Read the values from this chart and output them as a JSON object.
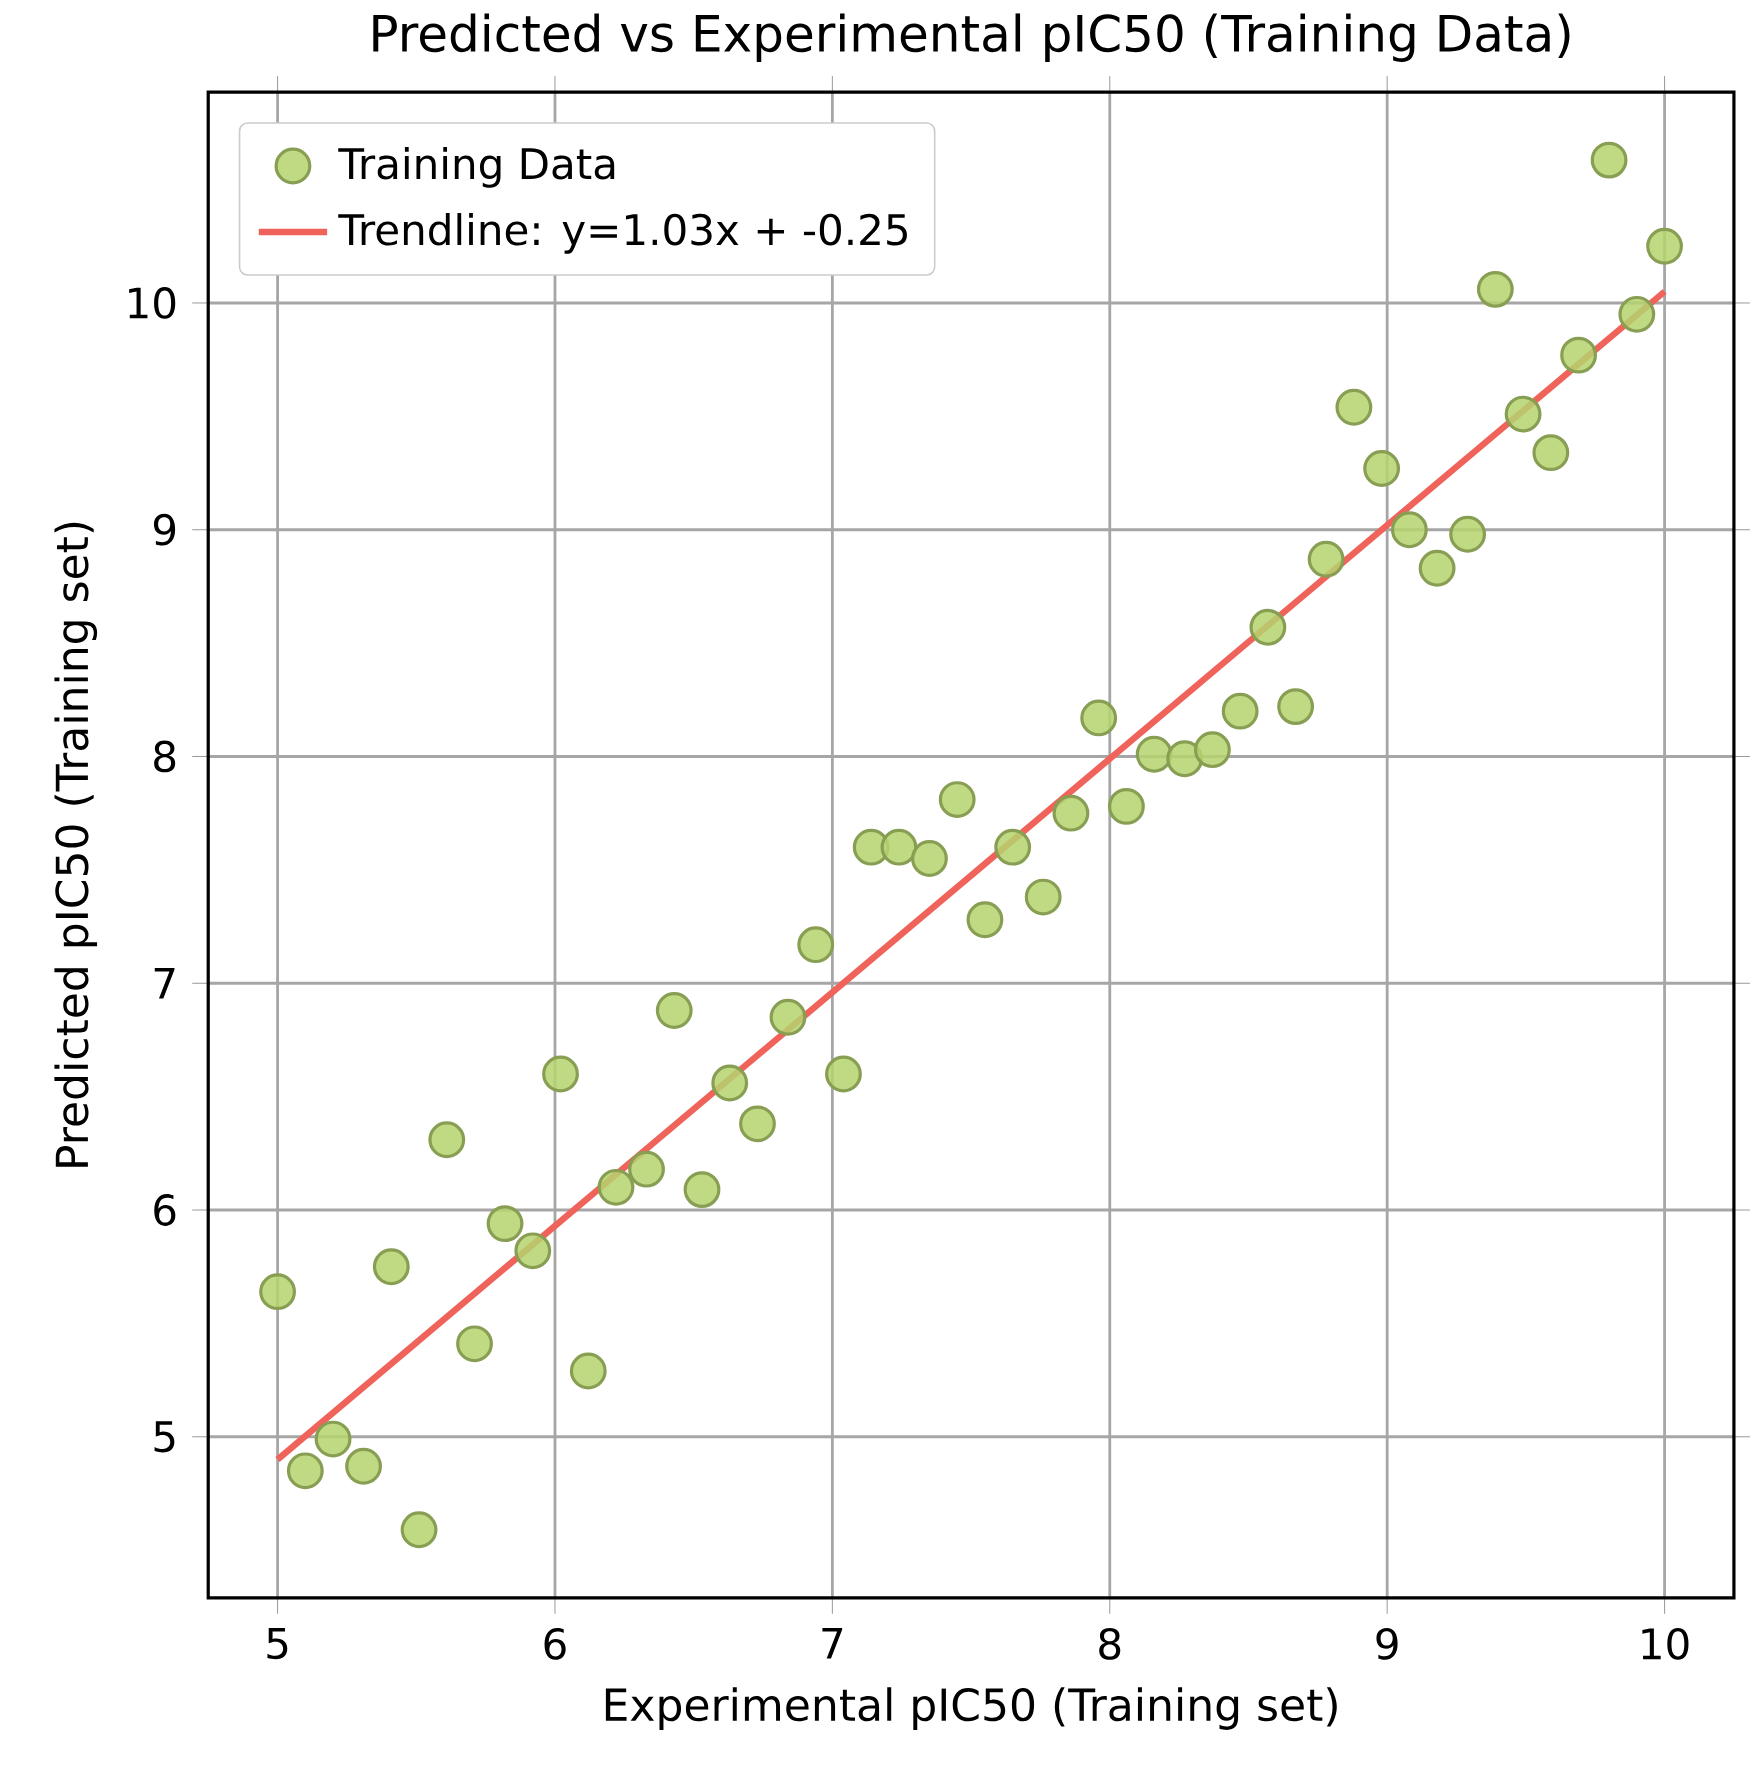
{
  "chart_data": {
    "type": "scatter",
    "title": "Predicted vs Experimental pIC50 (Training Data)",
    "xlabel": "Experimental pIC50 (Training set)",
    "ylabel": "Predicted pIC50 (Training set)",
    "xlim": [
      4.75,
      10.25
    ],
    "ylim": [
      4.29,
      10.93
    ],
    "xticks": [
      5,
      6,
      7,
      8,
      9,
      10
    ],
    "yticks": [
      5,
      6,
      7,
      8,
      9,
      10
    ],
    "grid": true,
    "legend": "top left",
    "marker": "circle",
    "series": [
      {
        "name": "Training Data",
        "color": "#b5d36f",
        "x": [
          5.0,
          5.1,
          5.2,
          5.31,
          5.41,
          5.51,
          5.61,
          5.71,
          5.82,
          5.92,
          6.02,
          6.12,
          6.22,
          6.33,
          6.43,
          6.53,
          6.63,
          6.73,
          6.84,
          6.94,
          7.04,
          7.14,
          7.24,
          7.35,
          7.45,
          7.55,
          7.65,
          7.76,
          7.86,
          7.96,
          8.06,
          8.16,
          8.27,
          8.37,
          8.47,
          8.57,
          8.67,
          8.78,
          8.88,
          8.98,
          9.08,
          9.18,
          9.29,
          9.39,
          9.49,
          9.59,
          9.69,
          9.8,
          9.9,
          10.0
        ],
        "values": [
          5.64,
          4.85,
          4.99,
          4.87,
          5.75,
          4.59,
          6.31,
          5.41,
          5.94,
          5.82,
          6.6,
          5.29,
          6.1,
          6.18,
          6.88,
          6.09,
          6.56,
          6.38,
          6.85,
          7.17,
          6.6,
          7.6,
          7.6,
          7.55,
          7.81,
          7.28,
          7.6,
          7.38,
          7.75,
          8.17,
          7.78,
          8.01,
          7.99,
          8.03,
          8.2,
          8.57,
          8.22,
          8.87,
          9.54,
          9.27,
          9.0,
          8.83,
          8.98,
          10.06,
          9.51,
          9.34,
          9.77,
          10.63,
          9.95,
          10.25
        ]
      },
      {
        "name": "Trendline: y=1.03x + -0.25",
        "type": "line",
        "color": "#f0635a",
        "marker": "none",
        "line_style": "solid",
        "x": [
          5,
          10
        ],
        "values": [
          4.9,
          10.05
        ]
      }
    ]
  }
}
